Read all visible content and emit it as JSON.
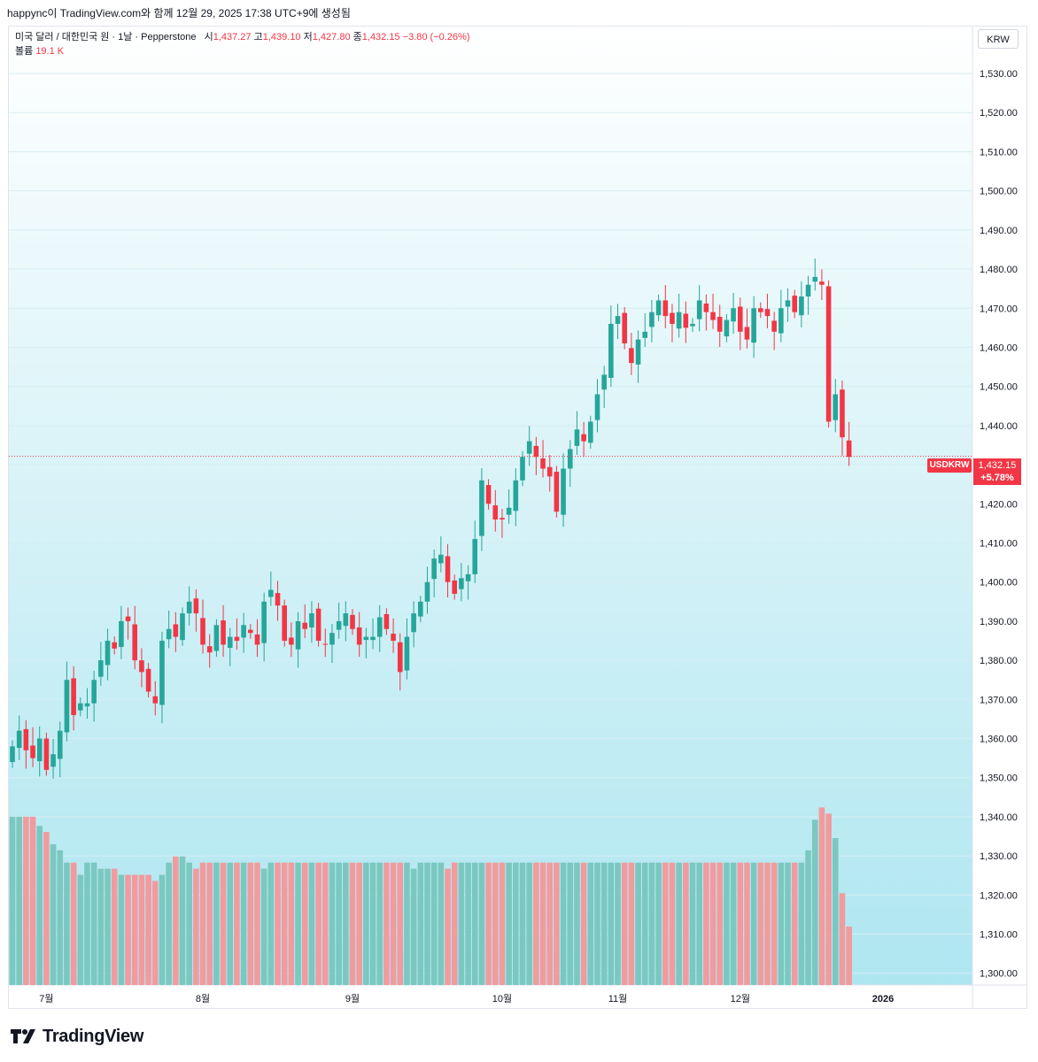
{
  "header": {
    "caption": "happync이 TradingView.com와 함께 12월 29, 2025 17:38 UTC+9에 생성됨"
  },
  "legend": {
    "title": "미국 달러 / 대한민국 원 · 1날 · Pepperstone",
    "open_label": "시",
    "open": "1,437.27",
    "high_label": "고",
    "high": "1,439.10",
    "low_label": "저",
    "low": "1,427.80",
    "close_label": "종",
    "close": "1,432.15",
    "change": "−3.80 (−0.26%)",
    "volume_label": "볼륨",
    "volume": "19.1 K"
  },
  "currency_button": "KRW",
  "price_tag": {
    "symbol": "USDKRW",
    "price": "1,432.15",
    "change_pct": "+5.78%"
  },
  "logo_text": "TradingView",
  "colors": {
    "up": "#26a69a",
    "down": "#f23645",
    "vol_up": "#7bc8c0",
    "vol_down": "#f19b9e",
    "bg_top": "#ffffff",
    "bg_bottom": "#aee6f0"
  },
  "chart_data": {
    "type": "candlestick",
    "symbol": "USDKRW",
    "timeframe": "1D",
    "ylim": [
      1297,
      1542
    ],
    "yticks": [
      1300,
      1310,
      1320,
      1330,
      1340,
      1350,
      1360,
      1370,
      1380,
      1390,
      1400,
      1410,
      1420,
      1430,
      1440,
      1450,
      1460,
      1470,
      1480,
      1490,
      1500,
      1510,
      1520,
      1530
    ],
    "x_labels": [
      {
        "label": "7월",
        "index": 5
      },
      {
        "label": "8월",
        "index": 28
      },
      {
        "label": "9월",
        "index": 50
      },
      {
        "label": "10월",
        "index": 72
      },
      {
        "label": "11월",
        "index": 89
      },
      {
        "label": "12월",
        "index": 107
      },
      {
        "label": "2026",
        "index": 128
      }
    ],
    "last_price": 1432.15,
    "closes": [
      1358,
      1362,
      1357,
      1355,
      1360,
      1352,
      1356,
      1362,
      1375,
      1366,
      1369,
      1369,
      1375,
      1380,
      1385,
      1383,
      1390,
      1390,
      1380,
      1377,
      1372,
      1369,
      1385,
      1388,
      1386,
      1392,
      1395,
      1392,
      1384,
      1382,
      1389,
      1384,
      1386,
      1385,
      1389,
      1387,
      1384,
      1395,
      1398,
      1394,
      1385,
      1384,
      1390,
      1388,
      1392,
      1385,
      1384,
      1387,
      1390,
      1392,
      1388,
      1384,
      1386,
      1386,
      1391,
      1388,
      1385,
      1377,
      1386,
      1392,
      1395,
      1400,
      1406,
      1407,
      1400,
      1397,
      1401,
      1402,
      1411,
      1426,
      1420,
      1416,
      1416,
      1419,
      1426,
      1432,
      1436,
      1432,
      1429,
      1427,
      1418,
      1429,
      1434,
      1439,
      1436,
      1441,
      1448,
      1453,
      1466,
      1468,
      1461,
      1456,
      1462,
      1464,
      1469,
      1472,
      1468,
      1466,
      1469,
      1465,
      1466,
      1472,
      1469,
      1467,
      1464,
      1467,
      1470,
      1464,
      1462,
      1470,
      1469,
      1468,
      1464,
      1470,
      1472,
      1469,
      1473,
      1476,
      1478,
      1476,
      1441,
      1448,
      1437,
      1432
    ],
    "volume_range_k": [
      0,
      75
    ],
    "volumes_k": [
      55,
      55,
      55,
      55,
      52,
      50,
      46,
      44,
      40,
      40,
      36,
      40,
      40,
      38,
      38,
      38,
      36,
      36,
      36,
      36,
      36,
      34,
      36,
      40,
      42,
      42,
      40,
      38,
      40,
      40,
      40,
      40,
      40,
      40,
      40,
      40,
      40,
      38,
      40,
      40,
      40,
      40,
      40,
      40,
      40,
      40,
      40,
      40,
      40,
      40,
      40,
      40,
      40,
      40,
      40,
      40,
      40,
      40,
      40,
      38,
      40,
      40,
      40,
      40,
      38,
      40,
      40,
      40,
      40,
      40,
      40,
      40,
      40,
      40,
      40,
      40,
      40,
      40,
      40,
      40,
      40,
      40,
      40,
      40,
      40,
      40,
      40,
      40,
      40,
      40,
      40,
      40,
      40,
      40,
      40,
      40,
      40,
      40,
      40,
      40,
      40,
      40,
      40,
      40,
      40,
      40,
      40,
      40,
      40,
      40,
      40,
      40,
      40,
      40,
      40,
      40,
      40,
      44,
      54,
      58,
      56,
      48,
      30,
      19.1
    ]
  }
}
